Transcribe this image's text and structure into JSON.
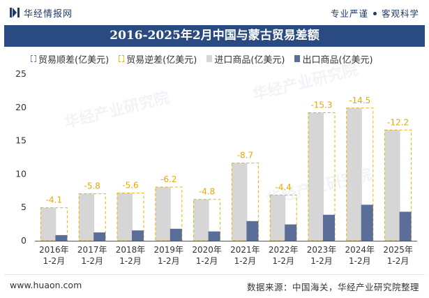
{
  "header": {
    "brand": "华经情报网",
    "slogan_left": "专业严谨",
    "slogan_right": "客观科学"
  },
  "title": "2016-2025年2月中国与蒙古贸易差额",
  "legend": {
    "surplus": "贸易顺差(亿美元)",
    "deficit": "贸易逆差(亿美元)",
    "import": "进口商品(亿美元)",
    "export": "出口商品(亿美元)"
  },
  "watermark": "华经产业研究院",
  "footer": {
    "website": "www.huaon.com",
    "source": "数据来源：中国海关，华经产业研究院整理"
  },
  "colors": {
    "import": "#d6d6d6",
    "export": "#5b6e98",
    "deficit_box": "#e8b200",
    "label": "#e8a800",
    "title_bg": "#2a4b82"
  },
  "chart_data": {
    "type": "bar",
    "categories": [
      "2016年\n1-2月",
      "2017年\n1-2月",
      "2018年\n1-2月",
      "2019年\n1-2月",
      "2020年\n1-2月",
      "2021年\n1-2月",
      "2022年\n1-2月",
      "2023年\n1-2月",
      "2024年\n1-2月",
      "2025年\n1-2月"
    ],
    "series": [
      {
        "name": "进口商品(亿美元)",
        "values": [
          4.95,
          7.05,
          7.15,
          8.05,
          6.2,
          11.65,
          6.85,
          19.2,
          19.9,
          16.6
        ]
      },
      {
        "name": "出口商品(亿美元)",
        "values": [
          0.85,
          1.25,
          1.55,
          1.8,
          1.4,
          2.95,
          2.45,
          3.9,
          5.4,
          4.35
        ]
      },
      {
        "name": "贸易逆差(亿美元)",
        "values": [
          -4.1,
          -5.8,
          -5.6,
          -6.2,
          -4.8,
          -8.7,
          -4.4,
          -15.3,
          -14.5,
          -12.2
        ]
      }
    ],
    "data_labels": [
      "-4.1",
      "-5.8",
      "-5.6",
      "-6.2",
      "-4.8",
      "-8.7",
      "-4.4",
      "-15.3",
      "-14.5",
      "-12.2"
    ],
    "yticks": [
      "0",
      "5",
      "10",
      "15",
      "20",
      "25"
    ],
    "ylim": [
      0,
      25
    ],
    "grid": false,
    "legend_position": "top-left"
  }
}
